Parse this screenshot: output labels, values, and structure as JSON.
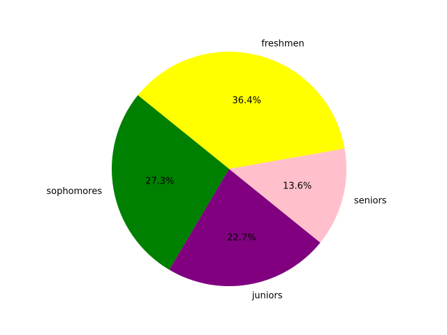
{
  "chart_data": {
    "type": "pie",
    "title": "",
    "slices": [
      {
        "label": "freshmen",
        "value": 36.4,
        "pct_label": "36.4%",
        "color": "#ffff00"
      },
      {
        "label": "sophomores",
        "value": 27.3,
        "pct_label": "27.3%",
        "color": "#008000"
      },
      {
        "label": "juniors",
        "value": 22.7,
        "pct_label": "22.7%",
        "color": "#800080"
      },
      {
        "label": "seniors",
        "value": 13.6,
        "pct_label": "13.6%",
        "color": "#ffc0cb"
      }
    ],
    "start_angle_deg": 10,
    "direction": "counterclockwise",
    "legend": "none"
  }
}
